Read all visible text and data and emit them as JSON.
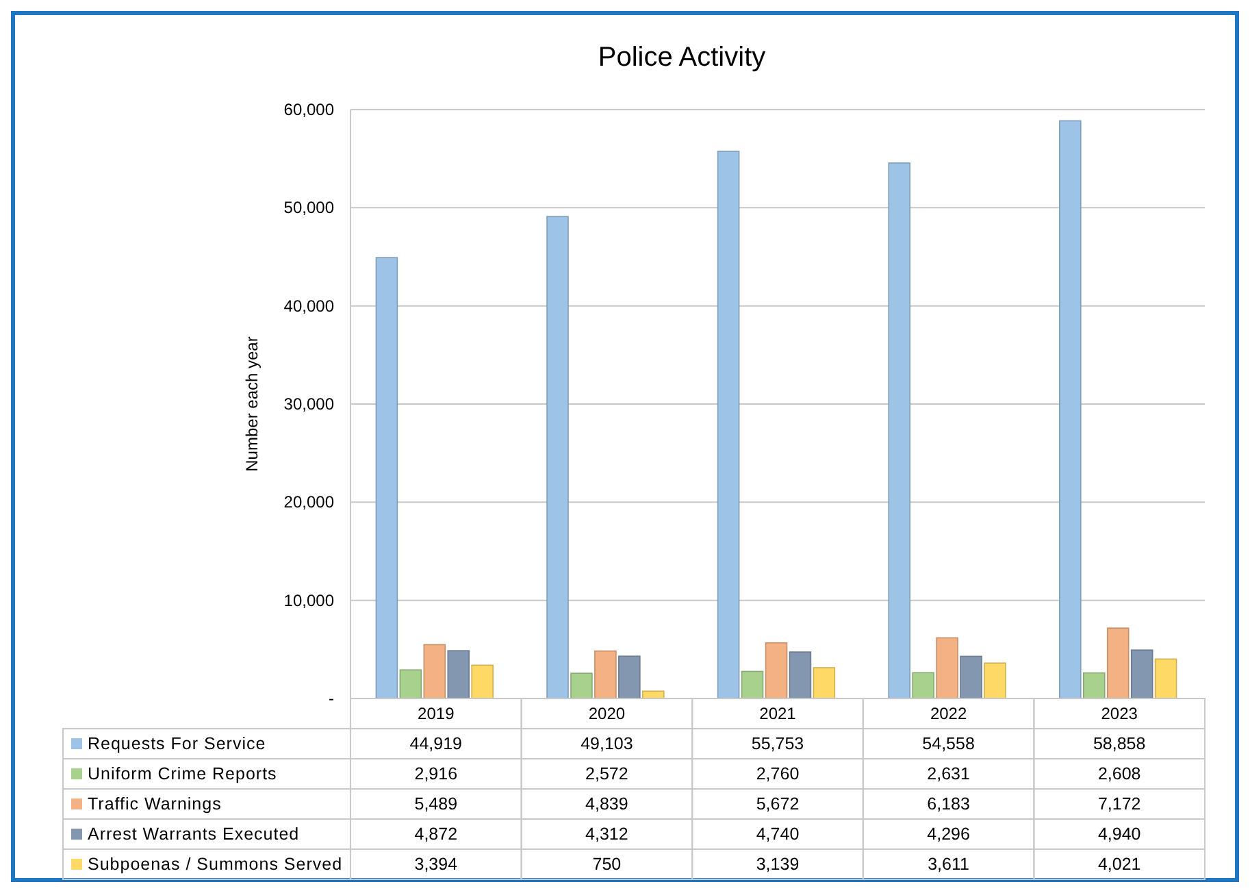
{
  "chart_data": {
    "type": "bar",
    "title": "Police Activity",
    "ylabel": "Number each year",
    "categories": [
      "2019",
      "2020",
      "2021",
      "2022",
      "2023"
    ],
    "series": [
      {
        "name": "Requests For Service",
        "color": "#9dc3e6",
        "values": [
          44919,
          49103,
          55753,
          54558,
          58858
        ],
        "value_labels": [
          "44,919",
          "49,103",
          "55,753",
          "54,558",
          "58,858"
        ]
      },
      {
        "name": "Uniform Crime Reports",
        "color": "#a9d18e",
        "values": [
          2916,
          2572,
          2760,
          2631,
          2608
        ],
        "value_labels": [
          "2,916",
          "2,572",
          "2,760",
          "2,631",
          "2,608"
        ]
      },
      {
        "name": "Traffic Warnings",
        "color": "#f4b183",
        "values": [
          5489,
          4839,
          5672,
          6183,
          7172
        ],
        "value_labels": [
          "5,489",
          "4,839",
          "5,672",
          "6,183",
          "7,172"
        ]
      },
      {
        "name": "Arrest Warrants Executed",
        "color": "#8497b0",
        "values": [
          4872,
          4312,
          4740,
          4296,
          4940
        ],
        "value_labels": [
          "4,872",
          "4,312",
          "4,740",
          "4,296",
          "4,940"
        ]
      },
      {
        "name": "Subpoenas / Summons Served",
        "color": "#ffd966",
        "values": [
          3394,
          750,
          3139,
          3611,
          4021
        ],
        "value_labels": [
          "3,394",
          "750",
          "3,139",
          "3,611",
          "4,021"
        ]
      }
    ],
    "ylim": [
      0,
      60000
    ],
    "yticks": [
      {
        "value": 0,
        "label": "-"
      },
      {
        "value": 10000,
        "label": "10,000"
      },
      {
        "value": 20000,
        "label": "20,000"
      },
      {
        "value": 30000,
        "label": "30,000"
      },
      {
        "value": 40000,
        "label": "40,000"
      },
      {
        "value": 50000,
        "label": "50,000"
      },
      {
        "value": 60000,
        "label": "60,000"
      }
    ],
    "grid": "y",
    "legend": "bottom"
  }
}
